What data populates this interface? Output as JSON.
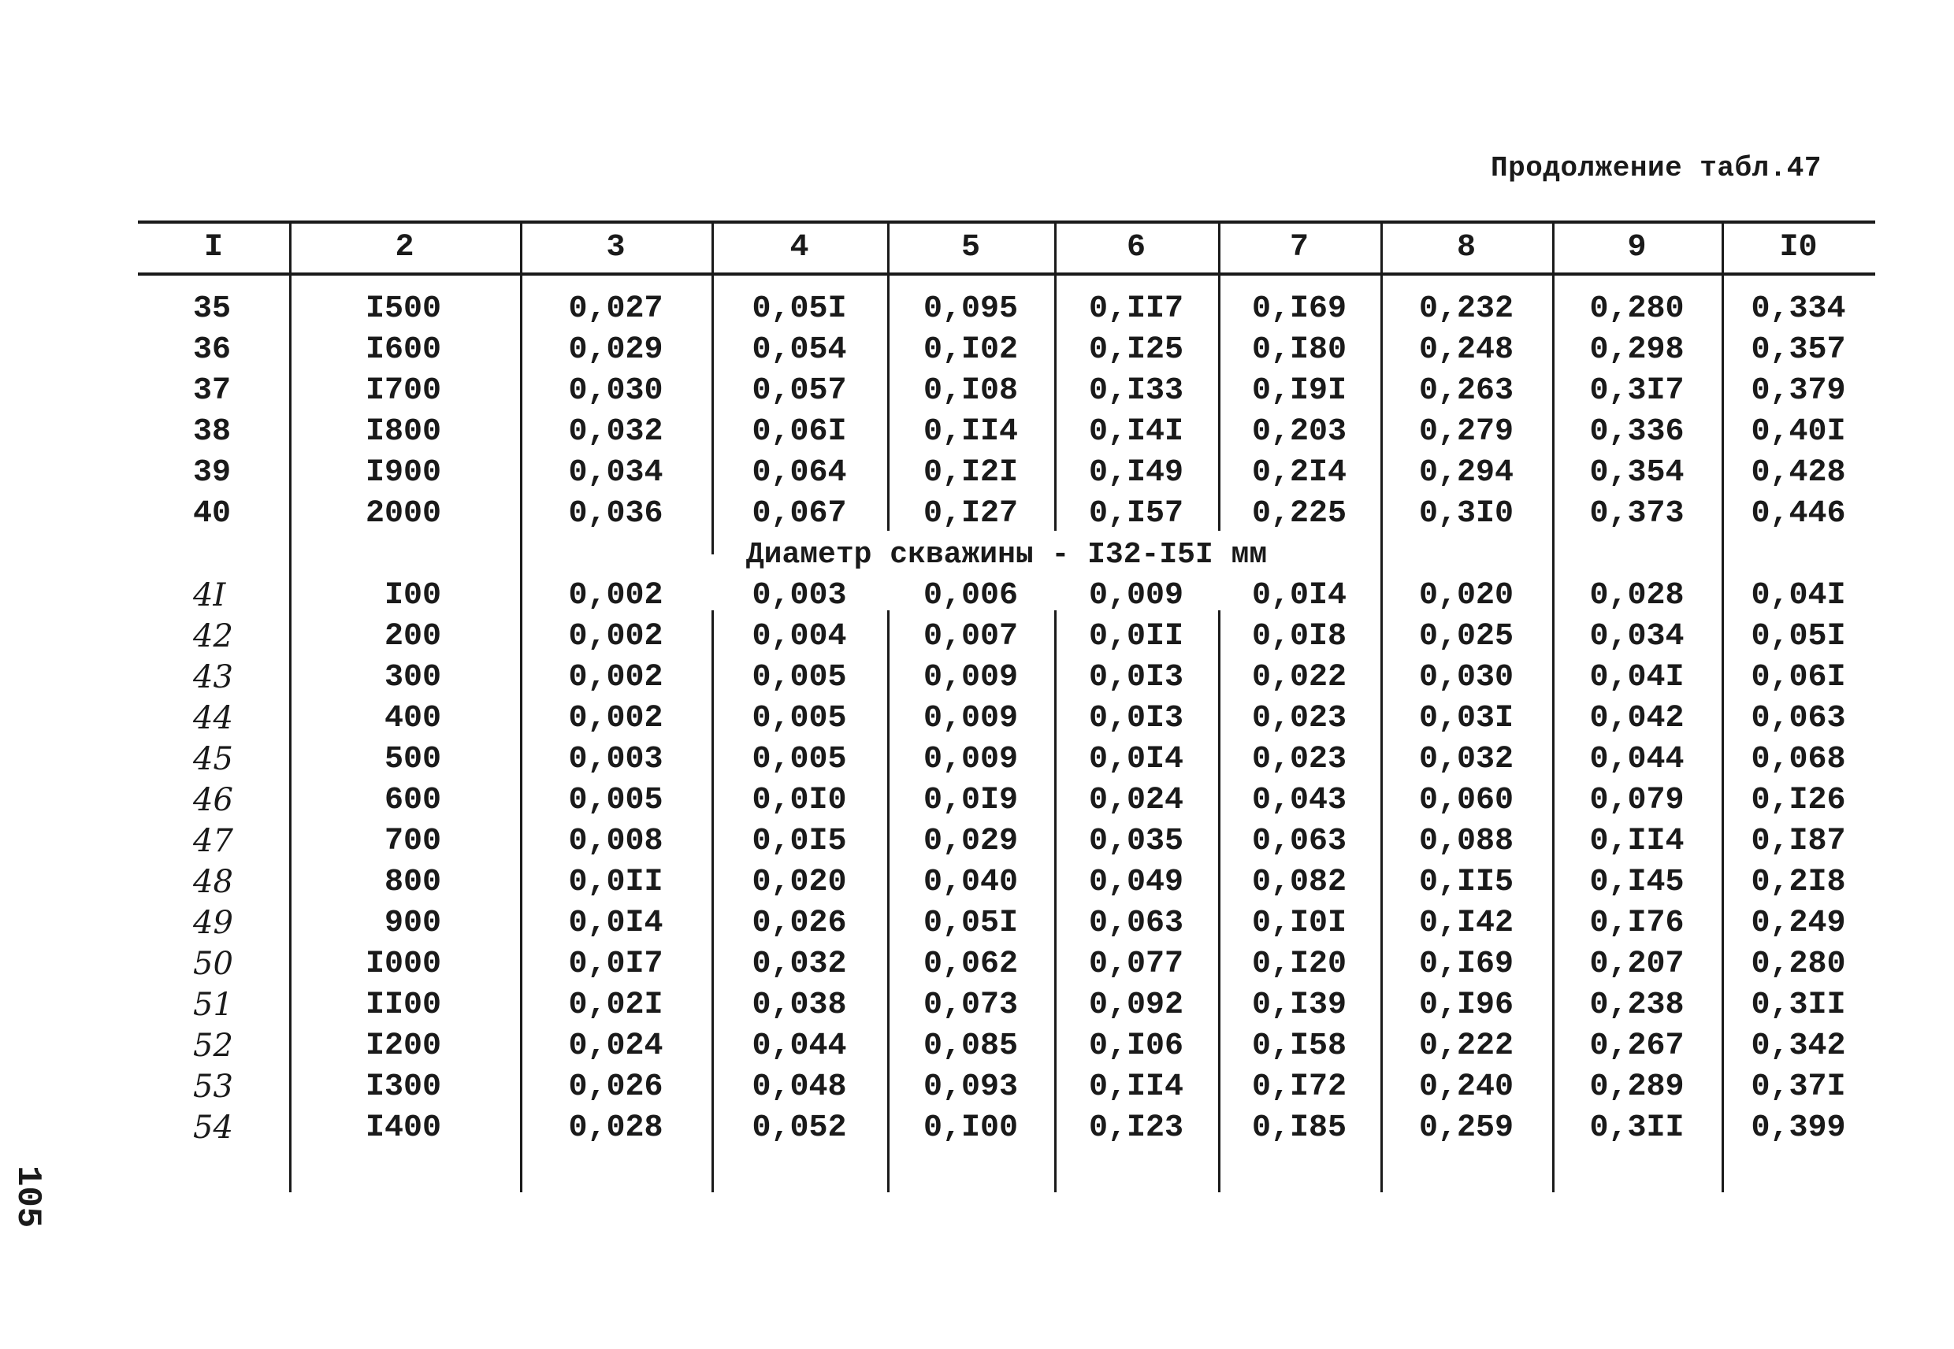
{
  "caption": "Продолжение табл.47",
  "page_number": "105",
  "header": [
    "I",
    "2",
    "3",
    "4",
    "5",
    "6",
    "7",
    "8",
    "9",
    "I0"
  ],
  "rows_a": [
    [
      "35",
      "I500",
      "0,027",
      "0,05I",
      "0,095",
      "0,II7",
      "0,I69",
      "0,232",
      "0,280",
      "0,334"
    ],
    [
      "36",
      "I600",
      "0,029",
      "0,054",
      "0,I02",
      "0,I25",
      "0,I80",
      "0,248",
      "0,298",
      "0,357"
    ],
    [
      "37",
      "I700",
      "0,030",
      "0,057",
      "0,I08",
      "0,I33",
      "0,I9I",
      "0,263",
      "0,3I7",
      "0,379"
    ],
    [
      "38",
      "I800",
      "0,032",
      "0,06I",
      "0,II4",
      "0,I4I",
      "0,203",
      "0,279",
      "0,336",
      "0,40I"
    ],
    [
      "39",
      "I900",
      "0,034",
      "0,064",
      "0,I2I",
      "0,I49",
      "0,2I4",
      "0,294",
      "0,354",
      "0,428"
    ],
    [
      "40",
      "2000",
      "0,036",
      "0,067",
      "0,I27",
      "0,I57",
      "0,225",
      "0,3I0",
      "0,373",
      "0,446"
    ]
  ],
  "section_label": "Диаметр скважины - I32-I5I мм",
  "rows_b": [
    [
      "4I",
      "I00",
      "0,002",
      "0,003",
      "0,006",
      "0,009",
      "0,0I4",
      "0,020",
      "0,028",
      "0,04I"
    ],
    [
      "42",
      "200",
      "0,002",
      "0,004",
      "0,007",
      "0,0II",
      "0,0I8",
      "0,025",
      "0,034",
      "0,05I"
    ],
    [
      "43",
      "300",
      "0,002",
      "0,005",
      "0,009",
      "0,0I3",
      "0,022",
      "0,030",
      "0,04I",
      "0,06I"
    ],
    [
      "44",
      "400",
      "0,002",
      "0,005",
      "0,009",
      "0,0I3",
      "0,023",
      "0,03I",
      "0,042",
      "0,063"
    ],
    [
      "45",
      "500",
      "0,003",
      "0,005",
      "0,009",
      "0,0I4",
      "0,023",
      "0,032",
      "0,044",
      "0,068"
    ],
    [
      "46",
      "600",
      "0,005",
      "0,0I0",
      "0,0I9",
      "0,024",
      "0,043",
      "0,060",
      "0,079",
      "0,I26"
    ],
    [
      "47",
      "700",
      "0,008",
      "0,0I5",
      "0,029",
      "0,035",
      "0,063",
      "0,088",
      "0,II4",
      "0,I87"
    ],
    [
      "48",
      "800",
      "0,0II",
      "0,020",
      "0,040",
      "0,049",
      "0,082",
      "0,II5",
      "0,I45",
      "0,2I8"
    ],
    [
      "49",
      "900",
      "0,0I4",
      "0,026",
      "0,05I",
      "0,063",
      "0,I0I",
      "0,I42",
      "0,I76",
      "0,249"
    ],
    [
      "50",
      "I000",
      "0,0I7",
      "0,032",
      "0,062",
      "0,077",
      "0,I20",
      "0,I69",
      "0,207",
      "0,280"
    ],
    [
      "51",
      "II00",
      "0,02I",
      "0,038",
      "0,073",
      "0,092",
      "0,I39",
      "0,I96",
      "0,238",
      "0,3II"
    ],
    [
      "52",
      "I200",
      "0,024",
      "0,044",
      "0,085",
      "0,I06",
      "0,I58",
      "0,222",
      "0,267",
      "0,342"
    ],
    [
      "53",
      "I300",
      "0,026",
      "0,048",
      "0,093",
      "0,II4",
      "0,I72",
      "0,240",
      "0,289",
      "0,37I"
    ],
    [
      "54",
      "I400",
      "0,028",
      "0,052",
      "0,I00",
      "0,I23",
      "0,I85",
      "0,259",
      "0,3II",
      "0,399"
    ]
  ]
}
